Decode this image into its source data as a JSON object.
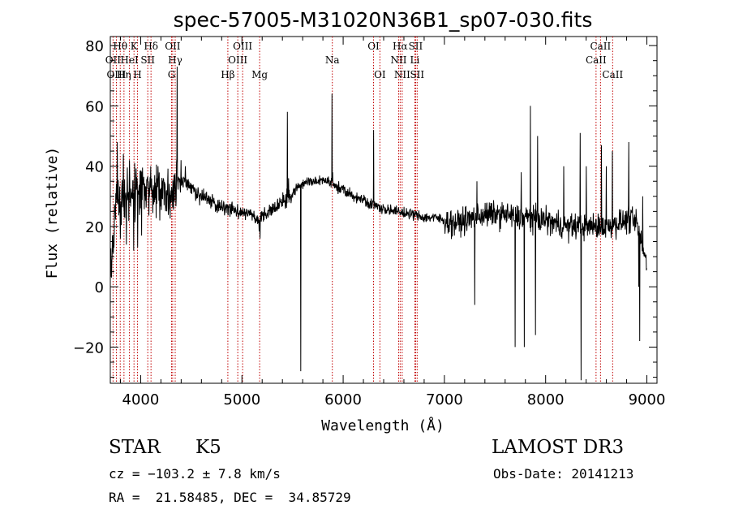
{
  "chart_data": {
    "type": "line",
    "title": "spec-57005-M31020N36B1_sp07-030.fits",
    "xlabel": "Wavelength (Å)",
    "ylabel": "Flux (relative)",
    "xlim": [
      3700,
      9100
    ],
    "ylim": [
      -32,
      83
    ],
    "xticks": [
      4000,
      5000,
      6000,
      7000,
      8000,
      9000
    ],
    "yticks": [
      -20,
      0,
      20,
      40,
      60,
      80
    ],
    "grid": false,
    "series": [
      {
        "name": "spectrum",
        "knots": [
          [
            3700,
            4
          ],
          [
            3720,
            10
          ],
          [
            3740,
            22
          ],
          [
            3760,
            30
          ],
          [
            3780,
            30
          ],
          [
            3800,
            28
          ],
          [
            3850,
            29
          ],
          [
            3900,
            30
          ],
          [
            3950,
            31
          ],
          [
            4000,
            31
          ],
          [
            4050,
            32
          ],
          [
            4100,
            32
          ],
          [
            4150,
            31
          ],
          [
            4200,
            31
          ],
          [
            4250,
            32
          ],
          [
            4300,
            32
          ],
          [
            4330,
            33
          ],
          [
            4370,
            36
          ],
          [
            4400,
            35
          ],
          [
            4450,
            34
          ],
          [
            4500,
            33
          ],
          [
            4550,
            31
          ],
          [
            4600,
            30
          ],
          [
            4650,
            29
          ],
          [
            4700,
            28
          ],
          [
            4750,
            27
          ],
          [
            4800,
            27
          ],
          [
            4850,
            26
          ],
          [
            4900,
            26
          ],
          [
            4950,
            25
          ],
          [
            5000,
            25
          ],
          [
            5100,
            24
          ],
          [
            5170,
            21
          ],
          [
            5200,
            23
          ],
          [
            5300,
            26
          ],
          [
            5400,
            28
          ],
          [
            5450,
            29
          ],
          [
            5500,
            31
          ],
          [
            5550,
            33
          ],
          [
            5600,
            34
          ],
          [
            5650,
            35
          ],
          [
            5700,
            35
          ],
          [
            5750,
            35
          ],
          [
            5800,
            35
          ],
          [
            5850,
            35
          ],
          [
            5900,
            34
          ],
          [
            5950,
            33
          ],
          [
            6000,
            32
          ],
          [
            6100,
            30
          ],
          [
            6200,
            29
          ],
          [
            6300,
            27
          ],
          [
            6400,
            26
          ],
          [
            6500,
            25
          ],
          [
            6600,
            24.5
          ],
          [
            6700,
            24
          ],
          [
            6800,
            23
          ],
          [
            6900,
            23
          ],
          [
            7000,
            22
          ],
          [
            7100,
            21
          ],
          [
            7200,
            22
          ],
          [
            7300,
            23
          ],
          [
            7400,
            24
          ],
          [
            7500,
            24
          ],
          [
            7600,
            24
          ],
          [
            7700,
            23
          ],
          [
            7800,
            23
          ],
          [
            7900,
            23
          ],
          [
            8000,
            22
          ],
          [
            8100,
            21
          ],
          [
            8200,
            20
          ],
          [
            8300,
            20
          ],
          [
            8400,
            20
          ],
          [
            8500,
            20
          ],
          [
            8600,
            20
          ],
          [
            8700,
            21
          ],
          [
            8800,
            22
          ],
          [
            8850,
            22
          ],
          [
            8900,
            21
          ],
          [
            8950,
            14
          ],
          [
            8990,
            9
          ],
          [
            9000,
            5
          ]
        ],
        "features": [
          [
            3770,
            48
          ],
          [
            3800,
            16
          ],
          [
            3830,
            44
          ],
          [
            3860,
            14
          ],
          [
            3890,
            42
          ],
          [
            3930,
            12
          ],
          [
            3970,
            13
          ],
          [
            4010,
            17
          ],
          [
            4100,
            40
          ],
          [
            4190,
            22
          ],
          [
            4280,
            26
          ],
          [
            4360,
            73
          ],
          [
            4400,
            42
          ],
          [
            4440,
            40
          ],
          [
            5180,
            16
          ],
          [
            5450,
            58
          ],
          [
            5460,
            36
          ],
          [
            5580,
            -28
          ],
          [
            5890,
            64
          ],
          [
            5895,
            38
          ],
          [
            6300,
            52
          ],
          [
            7300,
            -6
          ],
          [
            7320,
            35
          ],
          [
            7700,
            -20
          ],
          [
            7760,
            38
          ],
          [
            7790,
            -20
          ],
          [
            7850,
            60
          ],
          [
            7900,
            -16
          ],
          [
            7920,
            50
          ],
          [
            8180,
            40
          ],
          [
            8340,
            51
          ],
          [
            8350,
            -31
          ],
          [
            8400,
            40
          ],
          [
            8550,
            47
          ],
          [
            8600,
            40
          ],
          [
            8660,
            45
          ],
          [
            8820,
            48
          ],
          [
            8920,
            0
          ],
          [
            8930,
            -18
          ],
          [
            8960,
            30
          ]
        ]
      }
    ],
    "lines": [
      {
        "label": "Hθ",
        "x": 3798,
        "row": 0
      },
      {
        "label": "OII",
        "x": 3727,
        "row": 1
      },
      {
        "label": "OIII",
        "x": 3760,
        "row": 2
      },
      {
        "label": "Hη",
        "x": 3835,
        "row": 2
      },
      {
        "label": "HeI",
        "x": 3889,
        "row": 1
      },
      {
        "label": "K",
        "x": 3934,
        "row": 0
      },
      {
        "label": "H",
        "x": 3968,
        "row": 2
      },
      {
        "label": "SII",
        "x": 4070,
        "row": 1
      },
      {
        "label": "Hδ",
        "x": 4102,
        "row": 0
      },
      {
        "label": "OII",
        "x": 4316,
        "row": 0
      },
      {
        "label": "G",
        "x": 4305,
        "row": 2
      },
      {
        "label": "Hγ",
        "x": 4341,
        "row": 1
      },
      {
        "label": "Hβ",
        "x": 4861,
        "row": 2
      },
      {
        "label": "OIII",
        "x": 4959,
        "row": 1
      },
      {
        "label": "OIII",
        "x": 5007,
        "row": 0
      },
      {
        "label": "Mg",
        "x": 5175,
        "row": 2
      },
      {
        "label": "Na",
        "x": 5893,
        "row": 1
      },
      {
        "label": "OI",
        "x": 6300,
        "row": 0
      },
      {
        "label": "OI",
        "x": 6363,
        "row": 2
      },
      {
        "label": "NII",
        "x": 6548,
        "row": 1
      },
      {
        "label": "Hα",
        "x": 6563,
        "row": 0
      },
      {
        "label": "NII",
        "x": 6583,
        "row": 2
      },
      {
        "label": "Li",
        "x": 6708,
        "row": 1
      },
      {
        "label": "SII",
        "x": 6716,
        "row": 0
      },
      {
        "label": "SII",
        "x": 6731,
        "row": 2
      },
      {
        "label": "CaII",
        "x": 8498,
        "row": 1
      },
      {
        "label": "CaII",
        "x": 8542,
        "row": 0
      },
      {
        "label": "CaII",
        "x": 8662,
        "row": 2
      }
    ]
  },
  "info": {
    "object_class": "STAR",
    "subclass": "K5",
    "survey": "LAMOST DR3",
    "cz": "cz = −103.2 ± 7.8 km/s",
    "obs_date": "Obs-Date: 20141213",
    "coords": "RA =  21.58485, DEC =  34.85729"
  }
}
